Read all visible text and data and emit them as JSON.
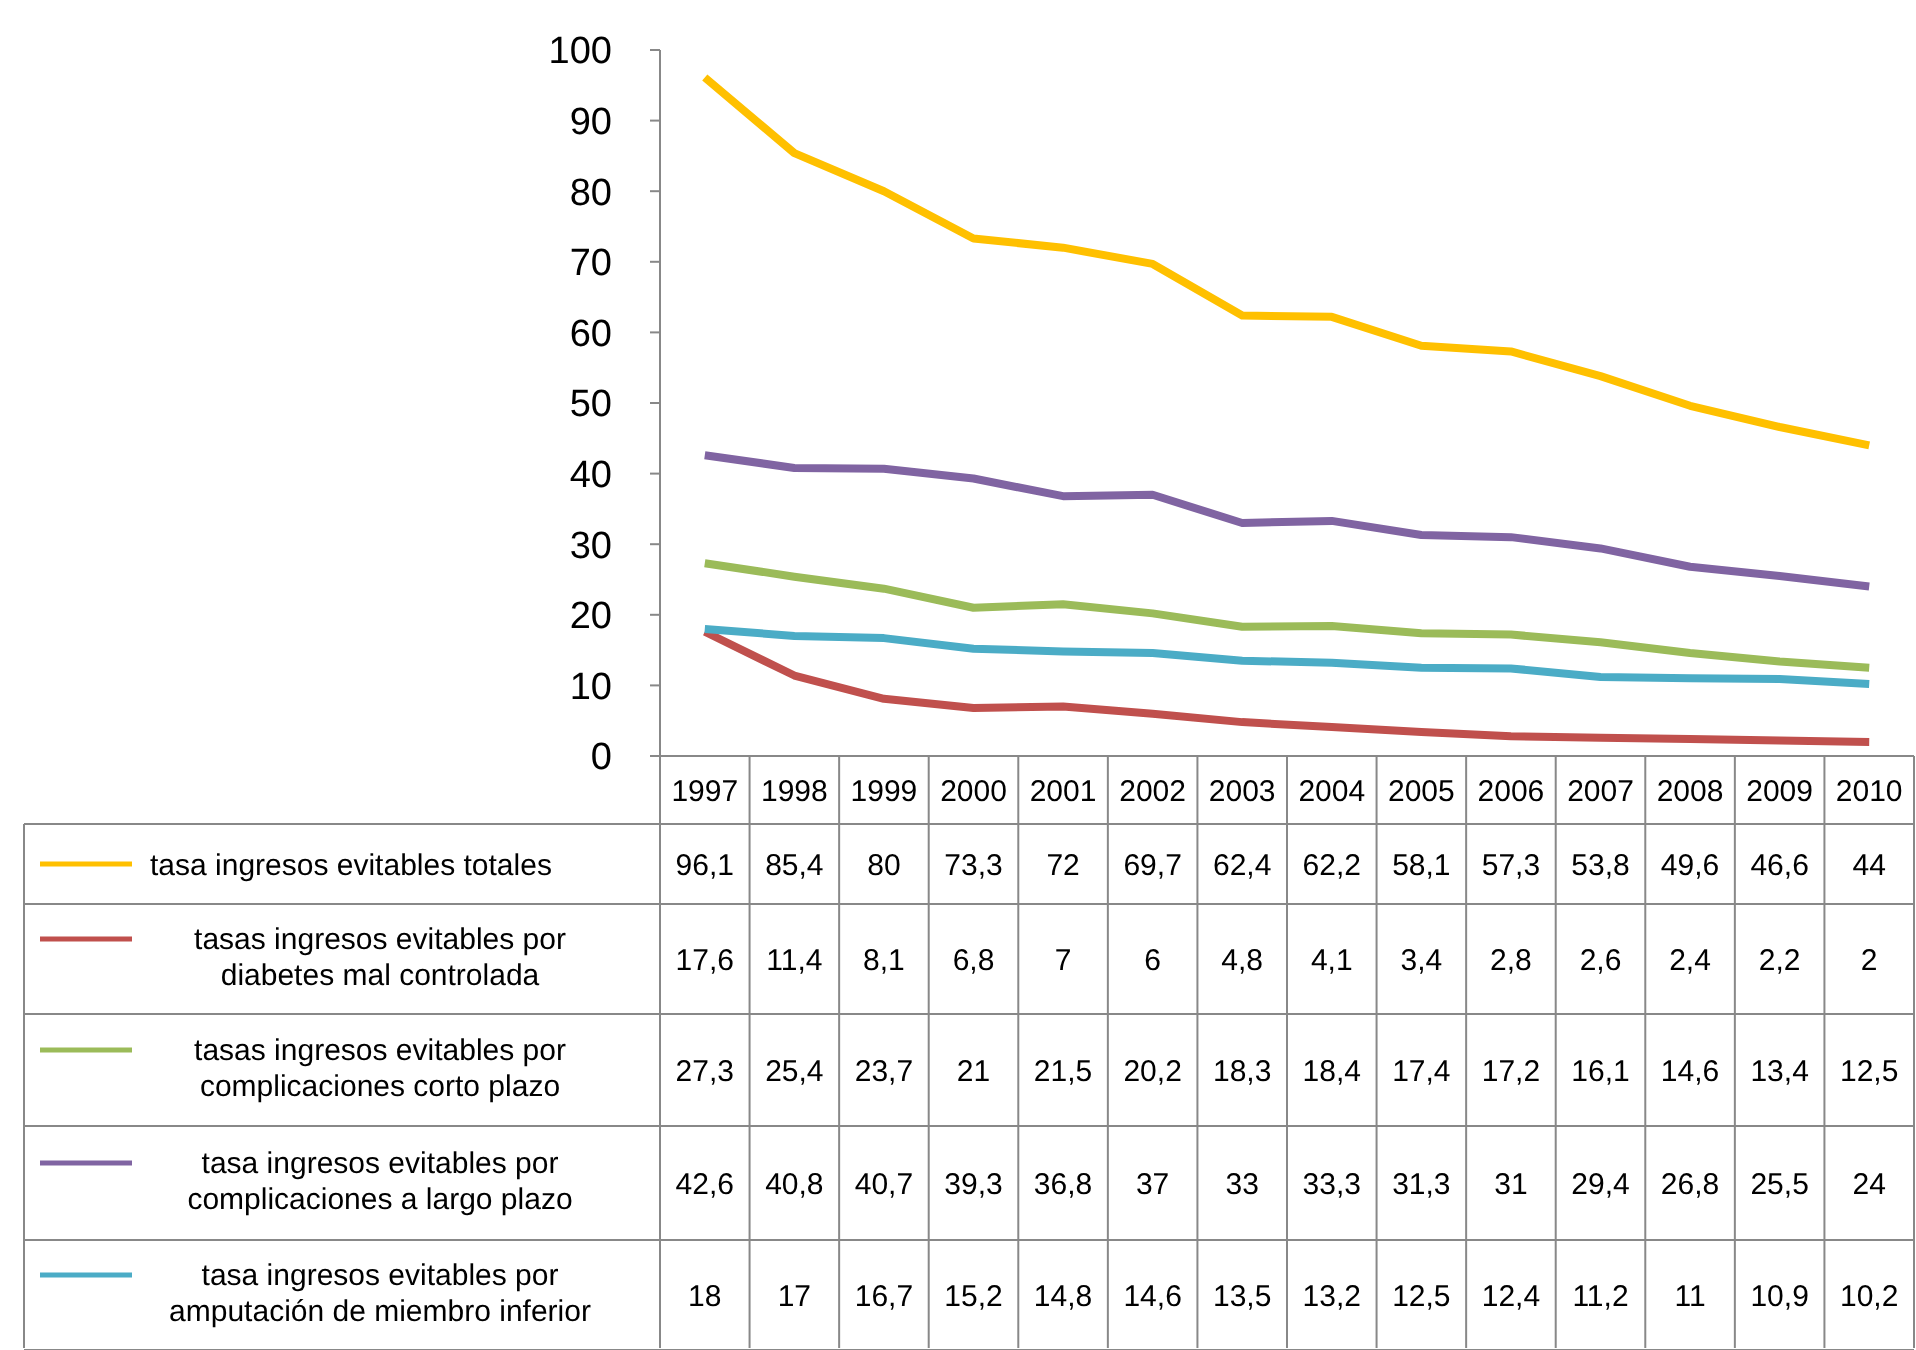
{
  "chart_data": {
    "type": "line",
    "categories": [
      "1997",
      "1998",
      "1999",
      "2000",
      "2001",
      "2002",
      "2003",
      "2004",
      "2005",
      "2006",
      "2007",
      "2008",
      "2009",
      "2010"
    ],
    "series": [
      {
        "name": "tasa ingresos evitables totales",
        "color": "#ffc000",
        "values": [
          96.1,
          85.4,
          80,
          73.3,
          72,
          69.7,
          62.4,
          62.2,
          58.1,
          57.3,
          53.8,
          49.6,
          46.6,
          44
        ],
        "value_labels": [
          "96,1",
          "85,4",
          "80",
          "73,3",
          "72",
          "69,7",
          "62,4",
          "62,2",
          "58,1",
          "57,3",
          "53,8",
          "49,6",
          "46,6",
          "44"
        ]
      },
      {
        "name": "tasas ingresos evitables por diabetes mal controlada",
        "color": "#c0504d",
        "values": [
          17.6,
          11.4,
          8.1,
          6.8,
          7,
          6,
          4.8,
          4.1,
          3.4,
          2.8,
          2.6,
          2.4,
          2.2,
          2
        ],
        "value_labels": [
          "17,6",
          "11,4",
          "8,1",
          "6,8",
          "7",
          "6",
          "4,8",
          "4,1",
          "3,4",
          "2,8",
          "2,6",
          "2,4",
          "2,2",
          "2"
        ]
      },
      {
        "name": "tasas ingresos evitables por complicaciones corto plazo",
        "color": "#9bbb59",
        "values": [
          27.3,
          25.4,
          23.7,
          21,
          21.5,
          20.2,
          18.3,
          18.4,
          17.4,
          17.2,
          16.1,
          14.6,
          13.4,
          12.5
        ],
        "value_labels": [
          "27,3",
          "25,4",
          "23,7",
          "21",
          "21,5",
          "20,2",
          "18,3",
          "18,4",
          "17,4",
          "17,2",
          "16,1",
          "14,6",
          "13,4",
          "12,5"
        ]
      },
      {
        "name": "tasa ingresos evitables  por complicaciones a largo plazo",
        "color": "#8064a2",
        "values": [
          42.6,
          40.8,
          40.7,
          39.3,
          36.8,
          37,
          33,
          33.3,
          31.3,
          31,
          29.4,
          26.8,
          25.5,
          24
        ],
        "value_labels": [
          "42,6",
          "40,8",
          "40,7",
          "39,3",
          "36,8",
          "37",
          "33",
          "33,3",
          "31,3",
          "31",
          "29,4",
          "26,8",
          "25,5",
          "24"
        ]
      },
      {
        "name": "tasa ingresos evitables  por amputación de miembro inferior",
        "color": "#4bacc6",
        "values": [
          18,
          17,
          16.7,
          15.2,
          14.8,
          14.6,
          13.5,
          13.2,
          12.5,
          12.4,
          11.2,
          11,
          10.9,
          10.2
        ],
        "value_labels": [
          "18",
          "17",
          "16,7",
          "15,2",
          "14,8",
          "14,6",
          "13,5",
          "13,2",
          "12,5",
          "12,4",
          "11,2",
          "11",
          "10,9",
          "10,2"
        ]
      }
    ],
    "ylim": [
      0,
      100
    ],
    "yticks": [
      0,
      10,
      20,
      30,
      40,
      50,
      60,
      70,
      80,
      90,
      100
    ],
    "grid": false,
    "legend": "bottom",
    "marker": "none",
    "line_style": "solid"
  }
}
